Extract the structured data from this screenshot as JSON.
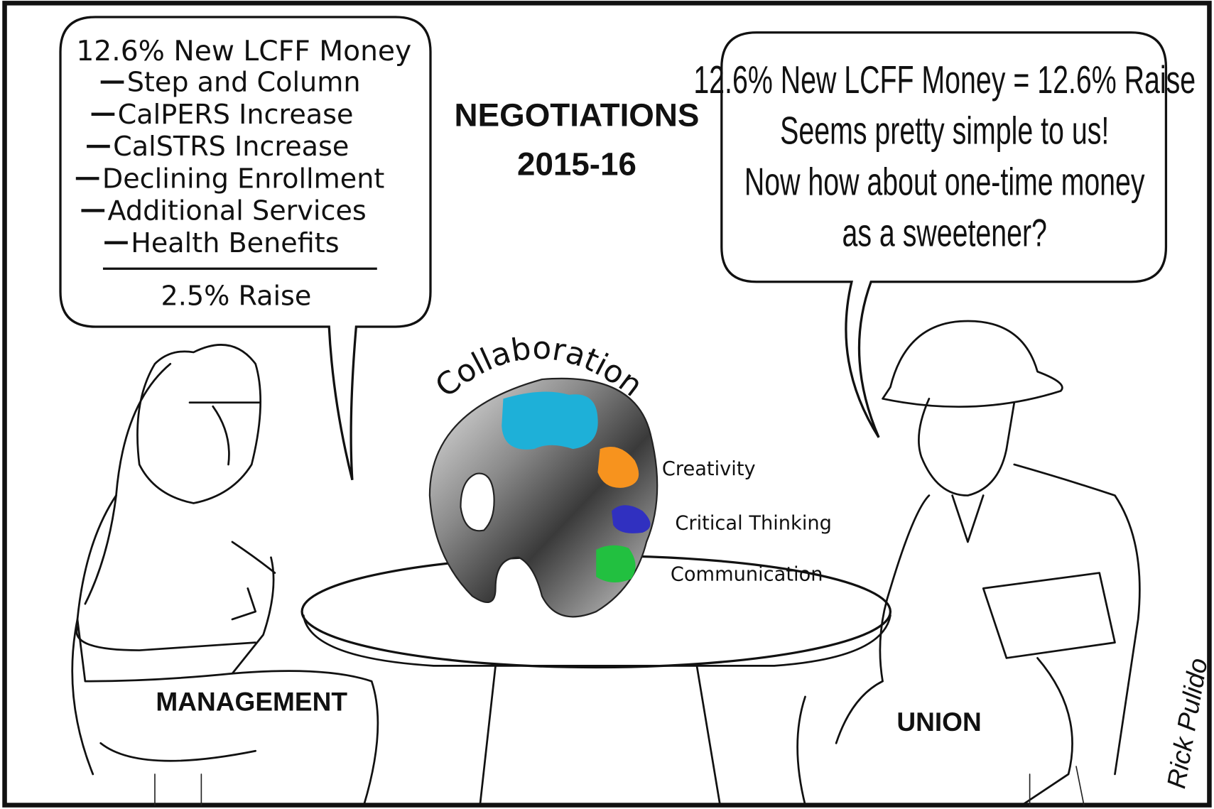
{
  "title": [
    "NEGOTIATIONS",
    "2015-16"
  ],
  "management_bubble": {
    "heading": "12.6% New LCFF Money",
    "deductions": [
      "Step and Column",
      "CalPERS Increase",
      "CalSTRS Increase",
      "Declining Enrollment",
      "Additional Services",
      "Health Benefits"
    ],
    "result": "2.5% Raise"
  },
  "union_bubble": {
    "lines": [
      "12.6% New LCFF Money = 12.6% Raise",
      "Seems pretty simple to us!",
      "Now how about one-time money",
      "as a sweetener?"
    ]
  },
  "palette": {
    "label": "Collaboration",
    "items": [
      "Creativity",
      "Critical Thinking",
      "Communication"
    ]
  },
  "labels": {
    "management": "MANAGEMENT",
    "union": "UNION"
  },
  "signature": "Rick Pulido"
}
